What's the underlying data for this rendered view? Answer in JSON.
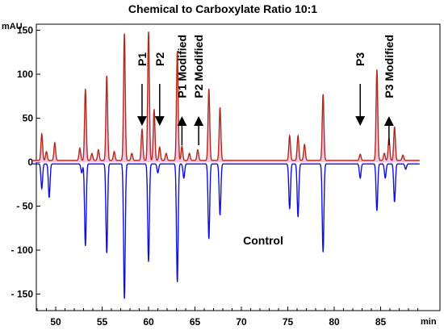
{
  "chart_data": {
    "type": "line",
    "title": "Chemical to Carboxylate Ratio 10:1",
    "xlabel": "min",
    "ylabel": "mAU",
    "xlim": [
      47.5,
      90.5
    ],
    "ylim": [
      -170,
      160
    ],
    "xticks": [
      50,
      55,
      60,
      65,
      70,
      75,
      80,
      85
    ],
    "yticks": [
      150,
      100,
      50,
      0,
      -50,
      -100,
      -150
    ],
    "ytick_labels": [
      "150",
      "100",
      "50",
      "0",
      "- 50",
      "- 100",
      "- 150"
    ],
    "series": [
      {
        "name": "",
        "color": "#b22a1a",
        "fill": "#f6c6e6",
        "baseline": 2,
        "peaks": [
          {
            "x": 48.5,
            "y": 32
          },
          {
            "x": 49.0,
            "y": 12
          },
          {
            "x": 49.9,
            "y": 22
          },
          {
            "x": 52.6,
            "y": 16
          },
          {
            "x": 53.2,
            "y": 83
          },
          {
            "x": 53.9,
            "y": 10
          },
          {
            "x": 54.6,
            "y": 14
          },
          {
            "x": 55.5,
            "y": 98
          },
          {
            "x": 56.3,
            "y": 12
          },
          {
            "x": 57.4,
            "y": 146
          },
          {
            "x": 58.2,
            "y": 10
          },
          {
            "x": 59.3,
            "y": 37
          },
          {
            "x": 60.0,
            "y": 148
          },
          {
            "x": 60.6,
            "y": 60
          },
          {
            "x": 61.2,
            "y": 17
          },
          {
            "x": 61.9,
            "y": 10
          },
          {
            "x": 63.1,
            "y": 126
          },
          {
            "x": 63.6,
            "y": 18
          },
          {
            "x": 64.4,
            "y": 10
          },
          {
            "x": 65.3,
            "y": 14
          },
          {
            "x": 66.5,
            "y": 83
          },
          {
            "x": 67.7,
            "y": 62
          },
          {
            "x": 75.2,
            "y": 30
          },
          {
            "x": 76.1,
            "y": 30
          },
          {
            "x": 76.8,
            "y": 20
          },
          {
            "x": 78.8,
            "y": 77
          },
          {
            "x": 82.8,
            "y": 9
          },
          {
            "x": 84.6,
            "y": 105
          },
          {
            "x": 85.4,
            "y": 10
          },
          {
            "x": 85.9,
            "y": 27
          },
          {
            "x": 86.5,
            "y": 40
          },
          {
            "x": 87.4,
            "y": 8
          }
        ]
      },
      {
        "name": "Control",
        "color": "#1010e0",
        "baseline": -2,
        "peaks": [
          {
            "x": 48.5,
            "y": -30
          },
          {
            "x": 49.3,
            "y": -40
          },
          {
            "x": 52.8,
            "y": -12
          },
          {
            "x": 53.2,
            "y": -95
          },
          {
            "x": 55.5,
            "y": -103
          },
          {
            "x": 57.4,
            "y": -155
          },
          {
            "x": 60.0,
            "y": -113
          },
          {
            "x": 61.0,
            "y": -12
          },
          {
            "x": 63.1,
            "y": -136
          },
          {
            "x": 63.8,
            "y": -18
          },
          {
            "x": 66.5,
            "y": -87
          },
          {
            "x": 67.7,
            "y": -60
          },
          {
            "x": 75.2,
            "y": -53
          },
          {
            "x": 76.1,
            "y": -62
          },
          {
            "x": 78.8,
            "y": -102
          },
          {
            "x": 82.8,
            "y": -18
          },
          {
            "x": 84.6,
            "y": -55
          },
          {
            "x": 85.5,
            "y": -18
          },
          {
            "x": 86.5,
            "y": -45
          },
          {
            "x": 87.7,
            "y": -8
          }
        ]
      }
    ],
    "annotations": [
      {
        "text": "P1",
        "x": 59.3,
        "direction": "down",
        "vertical": false
      },
      {
        "text": "P2",
        "x": 61.2,
        "direction": "down",
        "vertical": false
      },
      {
        "text": "P1 Modified",
        "x": 63.6,
        "direction": "up",
        "vertical": true
      },
      {
        "text": "P2 Modified",
        "x": 65.4,
        "direction": "up",
        "vertical": true
      },
      {
        "text": "P3",
        "x": 82.8,
        "direction": "down",
        "vertical": false
      },
      {
        "text": "P3 Modified",
        "x": 85.9,
        "direction": "up",
        "vertical": true
      }
    ]
  }
}
